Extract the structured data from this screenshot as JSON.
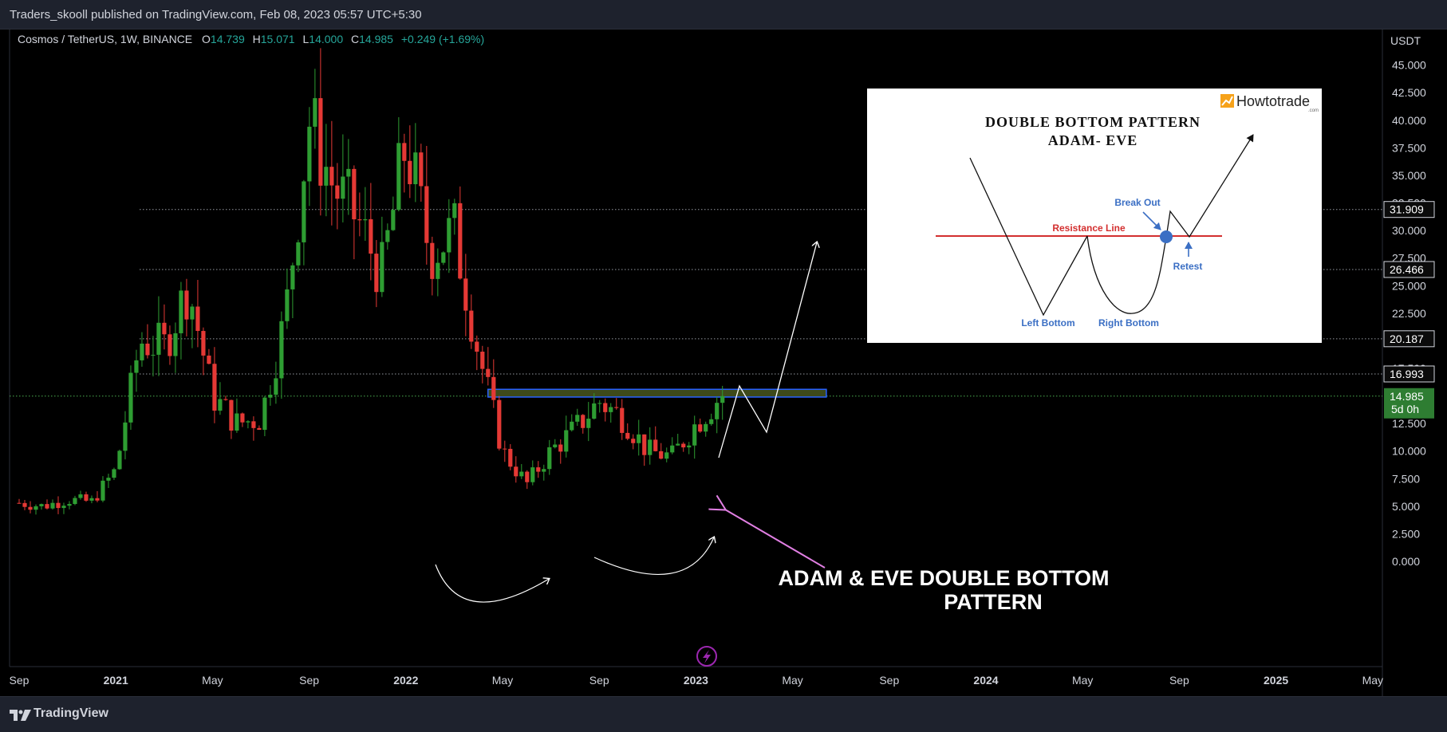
{
  "header": {
    "published_text": "Traders_skooll published on TradingView.com, Feb 08, 2023 05:57 UTC+5:30"
  },
  "footer": {
    "brand": "TradingView",
    "brand_icon": "tradingview-logo-icon"
  },
  "legend": {
    "symbol_text": "Cosmos / TetherUS, 1W, BINANCE",
    "open_label": "O",
    "open_value": "14.739",
    "high_label": "H",
    "high_value": "15.071",
    "low_label": "L",
    "low_value": "14.000",
    "close_label": "C",
    "close_value": "14.985",
    "change_text": "+0.249 (+1.69%)"
  },
  "annotation": {
    "line1": "ADAM & EVE DOUBLE BOTTOM",
    "line2": "PATTERN"
  },
  "inset": {
    "title_line1": "DOUBLE BOTTOM PATTERN",
    "title_line2": "ADAM- EVE",
    "brand": "Howtotrade",
    "brand_sub": ".com",
    "break_out": "Break Out",
    "resistance": "Resistance Line",
    "retest": "Retest",
    "left_bottom": "Left Bottom",
    "right_bottom": "Right Bottom"
  },
  "colors": {
    "up": "#26a69a",
    "down": "#ef5350",
    "candle_up": "#2e9d32",
    "candle_down": "#e53935",
    "zone_fill": "#3d4a1c",
    "zone_border": "#2962ff",
    "arrow_pink": "#e17fe3",
    "label_bg": "#0b0b0b",
    "price_green": "#2e7d32"
  },
  "chart_data": {
    "type": "candlestick",
    "symbol": "Cosmos / TetherUS, 1W, BINANCE",
    "currency": "USDT",
    "y_tick_labels": [
      "0.000",
      "2.500",
      "5.000",
      "7.500",
      "10.000",
      "12.500",
      "15.000",
      "17.500",
      "20.000",
      "22.500",
      "25.000",
      "27.500",
      "30.000",
      "32.500",
      "35.000",
      "37.500",
      "40.000",
      "42.500",
      "45.000"
    ],
    "y_ticks": [
      0,
      2.5,
      5,
      7.5,
      10,
      12.5,
      15,
      17.5,
      20,
      22.5,
      25,
      27.5,
      30,
      32.5,
      35,
      37.5,
      40,
      42.5,
      45
    ],
    "ylim": [
      -1,
      47
    ],
    "x_tick_labels": [
      "Sep",
      "2021",
      "May",
      "Sep",
      "2022",
      "May",
      "Sep",
      "2023",
      "May",
      "Sep",
      "2024",
      "May",
      "Sep",
      "2025",
      "May"
    ],
    "x_ticks": [
      "2020-09",
      "2021-01",
      "2021-05",
      "2021-09",
      "2022-01",
      "2022-05",
      "2022-09",
      "2023-01",
      "2023-05",
      "2023-09",
      "2024-01",
      "2024-05",
      "2024-09",
      "2025-01",
      "2025-05"
    ],
    "xlim": [
      "2020-09",
      "2025-06"
    ],
    "price_levels": [
      {
        "value": 31.909,
        "label": "31.909"
      },
      {
        "value": 26.466,
        "label": "26.466"
      },
      {
        "value": 20.187,
        "label": "20.187"
      },
      {
        "value": 16.993,
        "label": "16.993"
      }
    ],
    "last_price": {
      "value": 14.985,
      "label": "14.985",
      "countdown": "5d 0h"
    },
    "resistance_zone": {
      "from": 14.9,
      "to": 15.6,
      "start": "2022-04",
      "end": "2023-06"
    },
    "weekly_closes": [
      {
        "date": "2020-09",
        "close": 5.3
      },
      {
        "date": "2020-10",
        "close": 5.0
      },
      {
        "date": "2020-11",
        "close": 5.6
      },
      {
        "date": "2020-12",
        "close": 5.4
      },
      {
        "date": "2021-01",
        "close": 8.3
      },
      {
        "date": "2021-02",
        "close": 20.0
      },
      {
        "date": "2021-03",
        "close": 19.5
      },
      {
        "date": "2021-04",
        "close": 25.0
      },
      {
        "date": "2021-05",
        "close": 15.0
      },
      {
        "date": "2021-06",
        "close": 12.5
      },
      {
        "date": "2021-07",
        "close": 13.0
      },
      {
        "date": "2021-08",
        "close": 22.0
      },
      {
        "date": "2021-09",
        "close": 40.0
      },
      {
        "date": "2021-10",
        "close": 34.0
      },
      {
        "date": "2021-11",
        "close": 31.0
      },
      {
        "date": "2021-12",
        "close": 26.0
      },
      {
        "date": "2022-01",
        "close": 38.0
      },
      {
        "date": "2022-02",
        "close": 28.0
      },
      {
        "date": "2022-03",
        "close": 30.0
      },
      {
        "date": "2022-04",
        "close": 19.0
      },
      {
        "date": "2022-05",
        "close": 10.0
      },
      {
        "date": "2022-06",
        "close": 7.0
      },
      {
        "date": "2022-07",
        "close": 10.0
      },
      {
        "date": "2022-08",
        "close": 12.0
      },
      {
        "date": "2022-09",
        "close": 14.5
      },
      {
        "date": "2022-10",
        "close": 13.0
      },
      {
        "date": "2022-11",
        "close": 10.0
      },
      {
        "date": "2022-12",
        "close": 9.5
      },
      {
        "date": "2023-01",
        "close": 12.5
      },
      {
        "date": "2023-02",
        "close": 14.985
      }
    ]
  }
}
